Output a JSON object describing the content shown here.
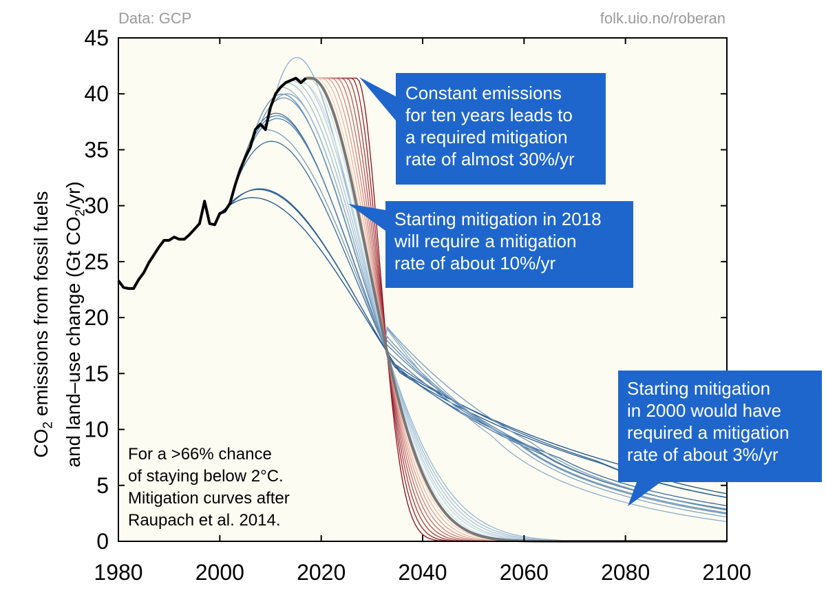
{
  "header": {
    "source_left": "Data: GCP",
    "source_right": "folk.uio.no/roberan"
  },
  "annotations": {
    "constant": [
      "Constant emissions",
      "for ten years leads to",
      "a required mitigation",
      "rate of almost 30%/yr"
    ],
    "start2018": [
      "Starting mitigation in 2018",
      "will require a mitigation",
      "rate of about 10%/yr"
    ],
    "start2000": [
      "Starting mitigation",
      "in 2000 would have",
      "required a mitigation",
      "rate of about 3%/yr"
    ],
    "note": [
      "For a >66% chance",
      "of staying below 2°C.",
      "Mitigation curves after",
      "Raupach et al. 2014."
    ]
  },
  "y_axis_label": {
    "line1_a": "CO",
    "line1_sub": "2",
    "line1_b": " emissions from fossil fuels",
    "line2_a": "and land–use change (Gt CO",
    "line2_sub": "2",
    "line2_b": "/yr)"
  },
  "colors": {
    "background": "#fdfcf2",
    "callout": "#1f66cc",
    "history": "#000000",
    "reference_path": "#777777",
    "early_mitigation": "#1a4f8a",
    "late_mitigation": "#8b0a1e"
  },
  "chart_data": {
    "type": "line",
    "xlim": [
      1980,
      2100
    ],
    "ylim": [
      0,
      45
    ],
    "x_ticks": [
      1980,
      2000,
      2020,
      2040,
      2060,
      2080,
      2100
    ],
    "y_ticks": [
      0,
      5,
      10,
      15,
      20,
      25,
      30,
      35,
      40,
      45
    ],
    "grid": false,
    "historical": {
      "x": [
        1980,
        1981,
        1982,
        1983,
        1984,
        1985,
        1986,
        1987,
        1988,
        1989,
        1990,
        1991,
        1992,
        1993,
        1994,
        1995,
        1996,
        1997,
        1998,
        1999,
        2000,
        2001,
        2002,
        2003,
        2004,
        2005,
        2006,
        2007,
        2008,
        2009,
        2010,
        2011,
        2012,
        2013,
        2014,
        2015,
        2016,
        2017
      ],
      "y": [
        23.3,
        22.7,
        22.6,
        22.6,
        23.4,
        24.0,
        24.9,
        25.6,
        26.3,
        26.9,
        26.9,
        27.2,
        27.0,
        27.0,
        27.4,
        27.9,
        28.4,
        30.4,
        28.4,
        28.3,
        29.3,
        29.5,
        30.2,
        31.8,
        33.2,
        34.3,
        35.2,
        36.8,
        37.3,
        36.8,
        38.8,
        40.0,
        40.6,
        41.0,
        41.2,
        41.4,
        41.0,
        41.4
      ]
    },
    "mitigation_scenarios": {
      "description_start_years": [
        2000,
        2001,
        2002,
        2003,
        2004,
        2005,
        2006,
        2007,
        2008,
        2009,
        2010,
        2011,
        2012,
        2013,
        2014,
        2015,
        2016,
        2017,
        2018,
        2019,
        2020,
        2021,
        2022,
        2023,
        2024,
        2025,
        2026,
        2027
      ],
      "reference_start_year": 2018,
      "convergence_point": [
        2033,
        16.9
      ]
    }
  }
}
